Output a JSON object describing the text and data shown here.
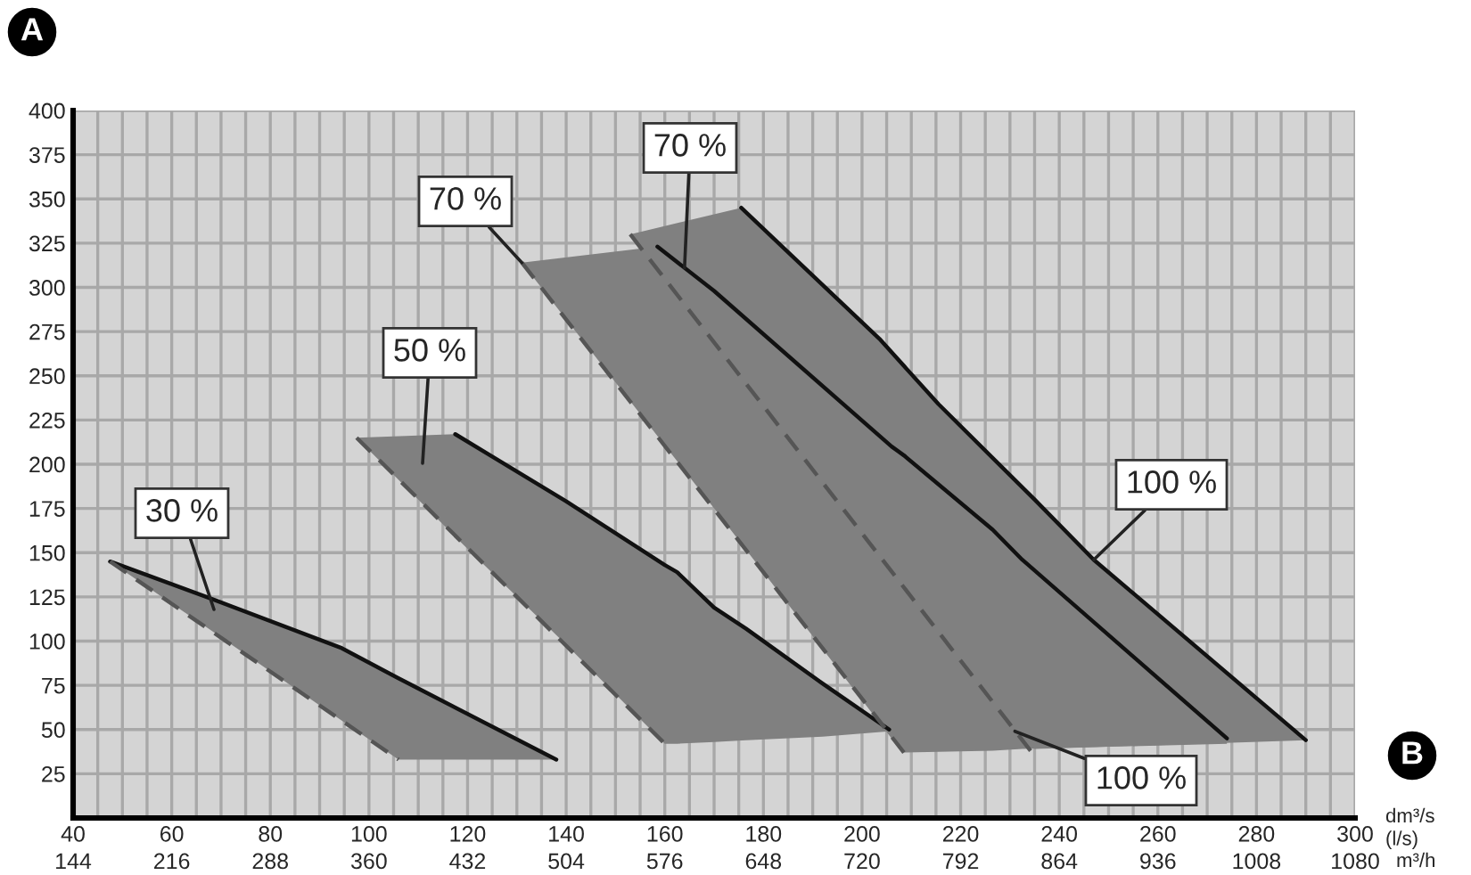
{
  "chart_data": {
    "type": "line",
    "xlabel": "dm³/s\n(l/s)",
    "x2label": "m³/h",
    "xlim": [
      40,
      300
    ],
    "xticks": [
      40,
      60,
      80,
      100,
      120,
      140,
      160,
      180,
      200,
      220,
      240,
      260,
      280,
      300
    ],
    "x2lim": [
      144,
      1080
    ],
    "x2ticks": [
      144,
      216,
      288,
      360,
      432,
      504,
      576,
      648,
      720,
      792,
      864,
      936,
      1008,
      1080
    ],
    "ylim": [
      0,
      400
    ],
    "yticks": [
      25,
      50,
      75,
      100,
      125,
      150,
      175,
      200,
      225,
      250,
      275,
      300,
      325,
      350,
      375,
      400
    ],
    "grid": true,
    "series": [
      {
        "color": "#111111",
        "line_style": "solid",
        "x": [
          47.5,
          68,
          94.5,
          106,
          138
        ],
        "values": [
          145,
          124,
          96,
          79,
          33
        ],
        "upper": [
          145,
          124,
          96,
          79,
          33
        ],
        "lower": [
          145,
          106,
          55,
          33,
          33
        ]
      },
      {
        "color": "#111111",
        "line_style": "solid",
        "x": [
          97.5,
          117.5,
          140,
          160,
          162.5,
          170,
          176.5,
          192,
          205.5
        ],
        "values": [
          null,
          217,
          179,
          143,
          139,
          119,
          107,
          76,
          50
        ],
        "upper": [
          215,
          217,
          179,
          143,
          139,
          119,
          107,
          76,
          50
        ],
        "lower": [
          215,
          159,
          98,
          42,
          42,
          43,
          44,
          46,
          49
        ]
      },
      {
        "color": "#111111",
        "line_style": "solid",
        "x": [
          131,
          158.5,
          170,
          206,
          208.5,
          226.5,
          232.5,
          274
        ],
        "values": [
          null,
          323,
          298,
          210,
          205,
          163,
          146,
          45
        ],
        "upper": [
          314,
          323,
          298,
          210,
          205,
          163,
          146,
          45
        ],
        "lower": [
          314,
          216,
          175,
          45,
          37,
          38,
          39,
          42
        ]
      },
      {
        "color": "#111111",
        "line_style": "solid",
        "x": [
          153,
          175.5,
          203.5,
          215.5,
          235,
          247,
          290
        ],
        "values": [
          null,
          345,
          271,
          234,
          180,
          146,
          44
        ],
        "upper": [
          330,
          345,
          271,
          234,
          180,
          146,
          44
        ],
        "lower": [
          330,
          250,
          148,
          105,
          39,
          40,
          44
        ]
      },
      {
        "color": "#555555",
        "line_style": "dashed",
        "x": [
          47.5,
          106
        ],
        "values": [
          145,
          33
        ]
      },
      {
        "color": "#555555",
        "line_style": "dashed",
        "x": [
          97.5,
          160
        ],
        "values": [
          215,
          42
        ]
      },
      {
        "color": "#555555",
        "line_style": "dashed",
        "x": [
          131,
          208.5
        ],
        "values": [
          314,
          37
        ]
      },
      {
        "color": "#555555",
        "line_style": "dashed",
        "x": [
          153,
          235
        ],
        "values": [
          330,
          35
        ]
      }
    ],
    "annotations": [
      "30 %",
      "50 %",
      {
        "text": "70 %",
        "x": 131,
        "y": 314
      },
      {
        "text": "70 %",
        "x": 164,
        "y": 311
      },
      {
        "text": "100 %",
        "x": 247,
        "y": 146
      },
      {
        "text": "100 %",
        "x": 231,
        "y": 49
      },
      "A",
      "B"
    ]
  }
}
